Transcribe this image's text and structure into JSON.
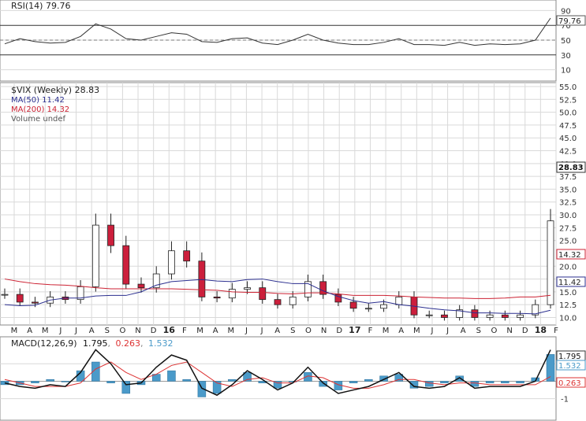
{
  "panels": {
    "rsi": {
      "label": "RSI(14) 79.76",
      "current": "79.76",
      "ticks": [
        "90",
        "70",
        "50",
        "30",
        "10"
      ]
    },
    "price": {
      "title": "$VIX (Weekly) 28.83",
      "legend": [
        {
          "text": "MA(50) 11.42",
          "color": "#2b2f8f"
        },
        {
          "text": "MA(200) 14.32",
          "color": "#cc2233"
        },
        {
          "text": "Volume undef",
          "color": "#555555"
        }
      ],
      "current_price": "28.83",
      "ma50_value": "11.42",
      "ma200_value": "14.32",
      "ticks": [
        "55.0",
        "52.5",
        "50.0",
        "47.5",
        "45.0",
        "42.5",
        "40.0",
        "37.5",
        "35.0",
        "32.5",
        "30.0",
        "27.5",
        "25.0",
        "20.0",
        "17.5",
        "15.0",
        "12.5",
        "10.0"
      ]
    },
    "macd": {
      "label_prefix": "MACD(12,26,9)",
      "macd_value": "1.795",
      "signal_value": "0.263",
      "hist_value": "1.532",
      "ticks": [
        "1",
        "0",
        "-1"
      ]
    }
  },
  "x_axis": {
    "labels": [
      "M",
      "A",
      "M",
      "J",
      "J",
      "A",
      "S",
      "O",
      "N",
      "D",
      "16",
      "F",
      "M",
      "A",
      "M",
      "J",
      "J",
      "A",
      "S",
      "O",
      "N",
      "D",
      "17",
      "F",
      "M",
      "A",
      "M",
      "J",
      "J",
      "A",
      "S",
      "O",
      "N",
      "D",
      "18",
      "F"
    ],
    "bold": [
      "16",
      "17",
      "18"
    ]
  },
  "colors": {
    "up": "#ffffff",
    "down": "#cc1f3c",
    "candle_outline": "#222222",
    "ma50": "#2b2f8f",
    "ma200": "#cc2233",
    "macd_line": "#111111",
    "signal_line": "#dd3333",
    "histogram": "#4a9ac9",
    "grid": "#d9d9d9"
  },
  "chart_data": [
    {
      "type": "candlestick",
      "title": "$VIX (Weekly) 28.83",
      "ylim": [
        9,
        55
      ],
      "x": [
        "2015-03",
        "2015-04",
        "2015-05",
        "2015-06",
        "2015-07",
        "2015-08a",
        "2015-08b",
        "2015-09",
        "2015-10",
        "2015-11",
        "2015-12",
        "2016-01",
        "2016-02",
        "2016-03",
        "2016-04",
        "2016-05",
        "2016-06",
        "2016-07",
        "2016-08",
        "2016-09",
        "2016-10",
        "2016-11",
        "2016-12",
        "2017-01",
        "2017-02",
        "2017-03",
        "2017-04",
        "2017-05",
        "2017-06",
        "2017-07",
        "2017-08",
        "2017-09",
        "2017-10",
        "2017-11",
        "2017-12",
        "2018-01",
        "2018-02"
      ],
      "close": [
        14.5,
        13.0,
        12.8,
        14.0,
        13.5,
        16.0,
        28.0,
        24.0,
        16.5,
        15.8,
        18.5,
        23.0,
        21.0,
        14.0,
        13.8,
        15.5,
        15.8,
        13.5,
        12.5,
        14.0,
        17.0,
        14.5,
        13.0,
        11.8,
        11.8,
        12.5,
        14.0,
        10.5,
        10.5,
        10.0,
        11.5,
        10.0,
        10.5,
        10.0,
        10.5,
        12.5,
        28.83
      ],
      "series": [
        {
          "name": "MA(50)",
          "values": [
            12.5,
            12.3,
            12.4,
            13.4,
            13.8,
            13.8,
            14.2,
            14.3,
            14.3,
            15.0,
            16.3,
            17.0,
            17.2,
            17.4,
            17.1,
            17.0,
            17.4,
            17.5,
            17.0,
            16.6,
            16.6,
            15.2,
            14.1,
            13.3,
            12.8,
            13.1,
            12.5,
            12.2,
            11.8,
            11.5,
            11.3,
            10.9,
            10.9,
            10.8,
            10.8,
            10.7,
            11.42
          ]
        },
        {
          "name": "MA(200)",
          "values": [
            17.5,
            17.0,
            16.6,
            16.4,
            16.3,
            16.1,
            15.8,
            15.6,
            15.6,
            15.6,
            15.6,
            15.6,
            15.5,
            15.4,
            15.3,
            15.0,
            14.9,
            14.9,
            14.7,
            14.6,
            14.8,
            14.8,
            14.6,
            14.3,
            14.3,
            14.3,
            14.2,
            14.0,
            13.9,
            13.8,
            13.8,
            13.7,
            13.7,
            13.8,
            14.0,
            14.0,
            14.32
          ]
        }
      ]
    },
    {
      "type": "line",
      "title": "RSI(14) 79.76",
      "ylim": [
        0,
        100
      ],
      "values": [
        45,
        52,
        48,
        46,
        47,
        55,
        72,
        65,
        52,
        50,
        55,
        60,
        58,
        48,
        47,
        52,
        53,
        46,
        44,
        50,
        58,
        50,
        46,
        44,
        44,
        47,
        52,
        44,
        44,
        43,
        47,
        43,
        45,
        44,
        45,
        50,
        79.76
      ]
    },
    {
      "type": "line",
      "title": "MACD(12,26,9)",
      "ylim": [
        -1.6,
        2.0
      ],
      "series": [
        {
          "name": "MACD",
          "values": [
            -0.1,
            -0.3,
            -0.4,
            -0.2,
            -0.3,
            0.5,
            1.8,
            1.0,
            -0.2,
            -0.1,
            0.8,
            1.5,
            1.2,
            -0.4,
            -0.8,
            -0.2,
            0.6,
            0.1,
            -0.5,
            -0.1,
            0.8,
            -0.1,
            -0.7,
            -0.5,
            -0.3,
            0.1,
            0.5,
            -0.3,
            -0.4,
            -0.3,
            0.2,
            -0.4,
            -0.3,
            -0.3,
            -0.3,
            0.0,
            1.795
          ]
        },
        {
          "name": "Signal",
          "values": [
            0.1,
            -0.1,
            -0.3,
            -0.3,
            -0.3,
            -0.1,
            0.7,
            1.1,
            0.5,
            0.1,
            0.4,
            0.9,
            1.1,
            0.5,
            -0.1,
            -0.3,
            0.1,
            0.2,
            -0.1,
            -0.1,
            0.3,
            0.2,
            -0.2,
            -0.4,
            -0.4,
            -0.2,
            0.1,
            0.1,
            -0.1,
            -0.2,
            -0.1,
            -0.1,
            -0.2,
            -0.2,
            -0.2,
            -0.2,
            0.263
          ]
        },
        {
          "name": "Histogram",
          "values": [
            -0.2,
            -0.2,
            -0.1,
            0.1,
            0.0,
            0.6,
            1.1,
            -0.1,
            -0.7,
            -0.2,
            0.4,
            0.6,
            0.1,
            -0.9,
            -0.7,
            0.1,
            0.5,
            -0.1,
            -0.4,
            0.0,
            0.5,
            -0.3,
            -0.5,
            -0.1,
            0.1,
            0.3,
            0.4,
            -0.4,
            -0.3,
            -0.1,
            0.3,
            -0.3,
            -0.1,
            -0.1,
            -0.1,
            0.2,
            1.532
          ]
        }
      ]
    }
  ]
}
